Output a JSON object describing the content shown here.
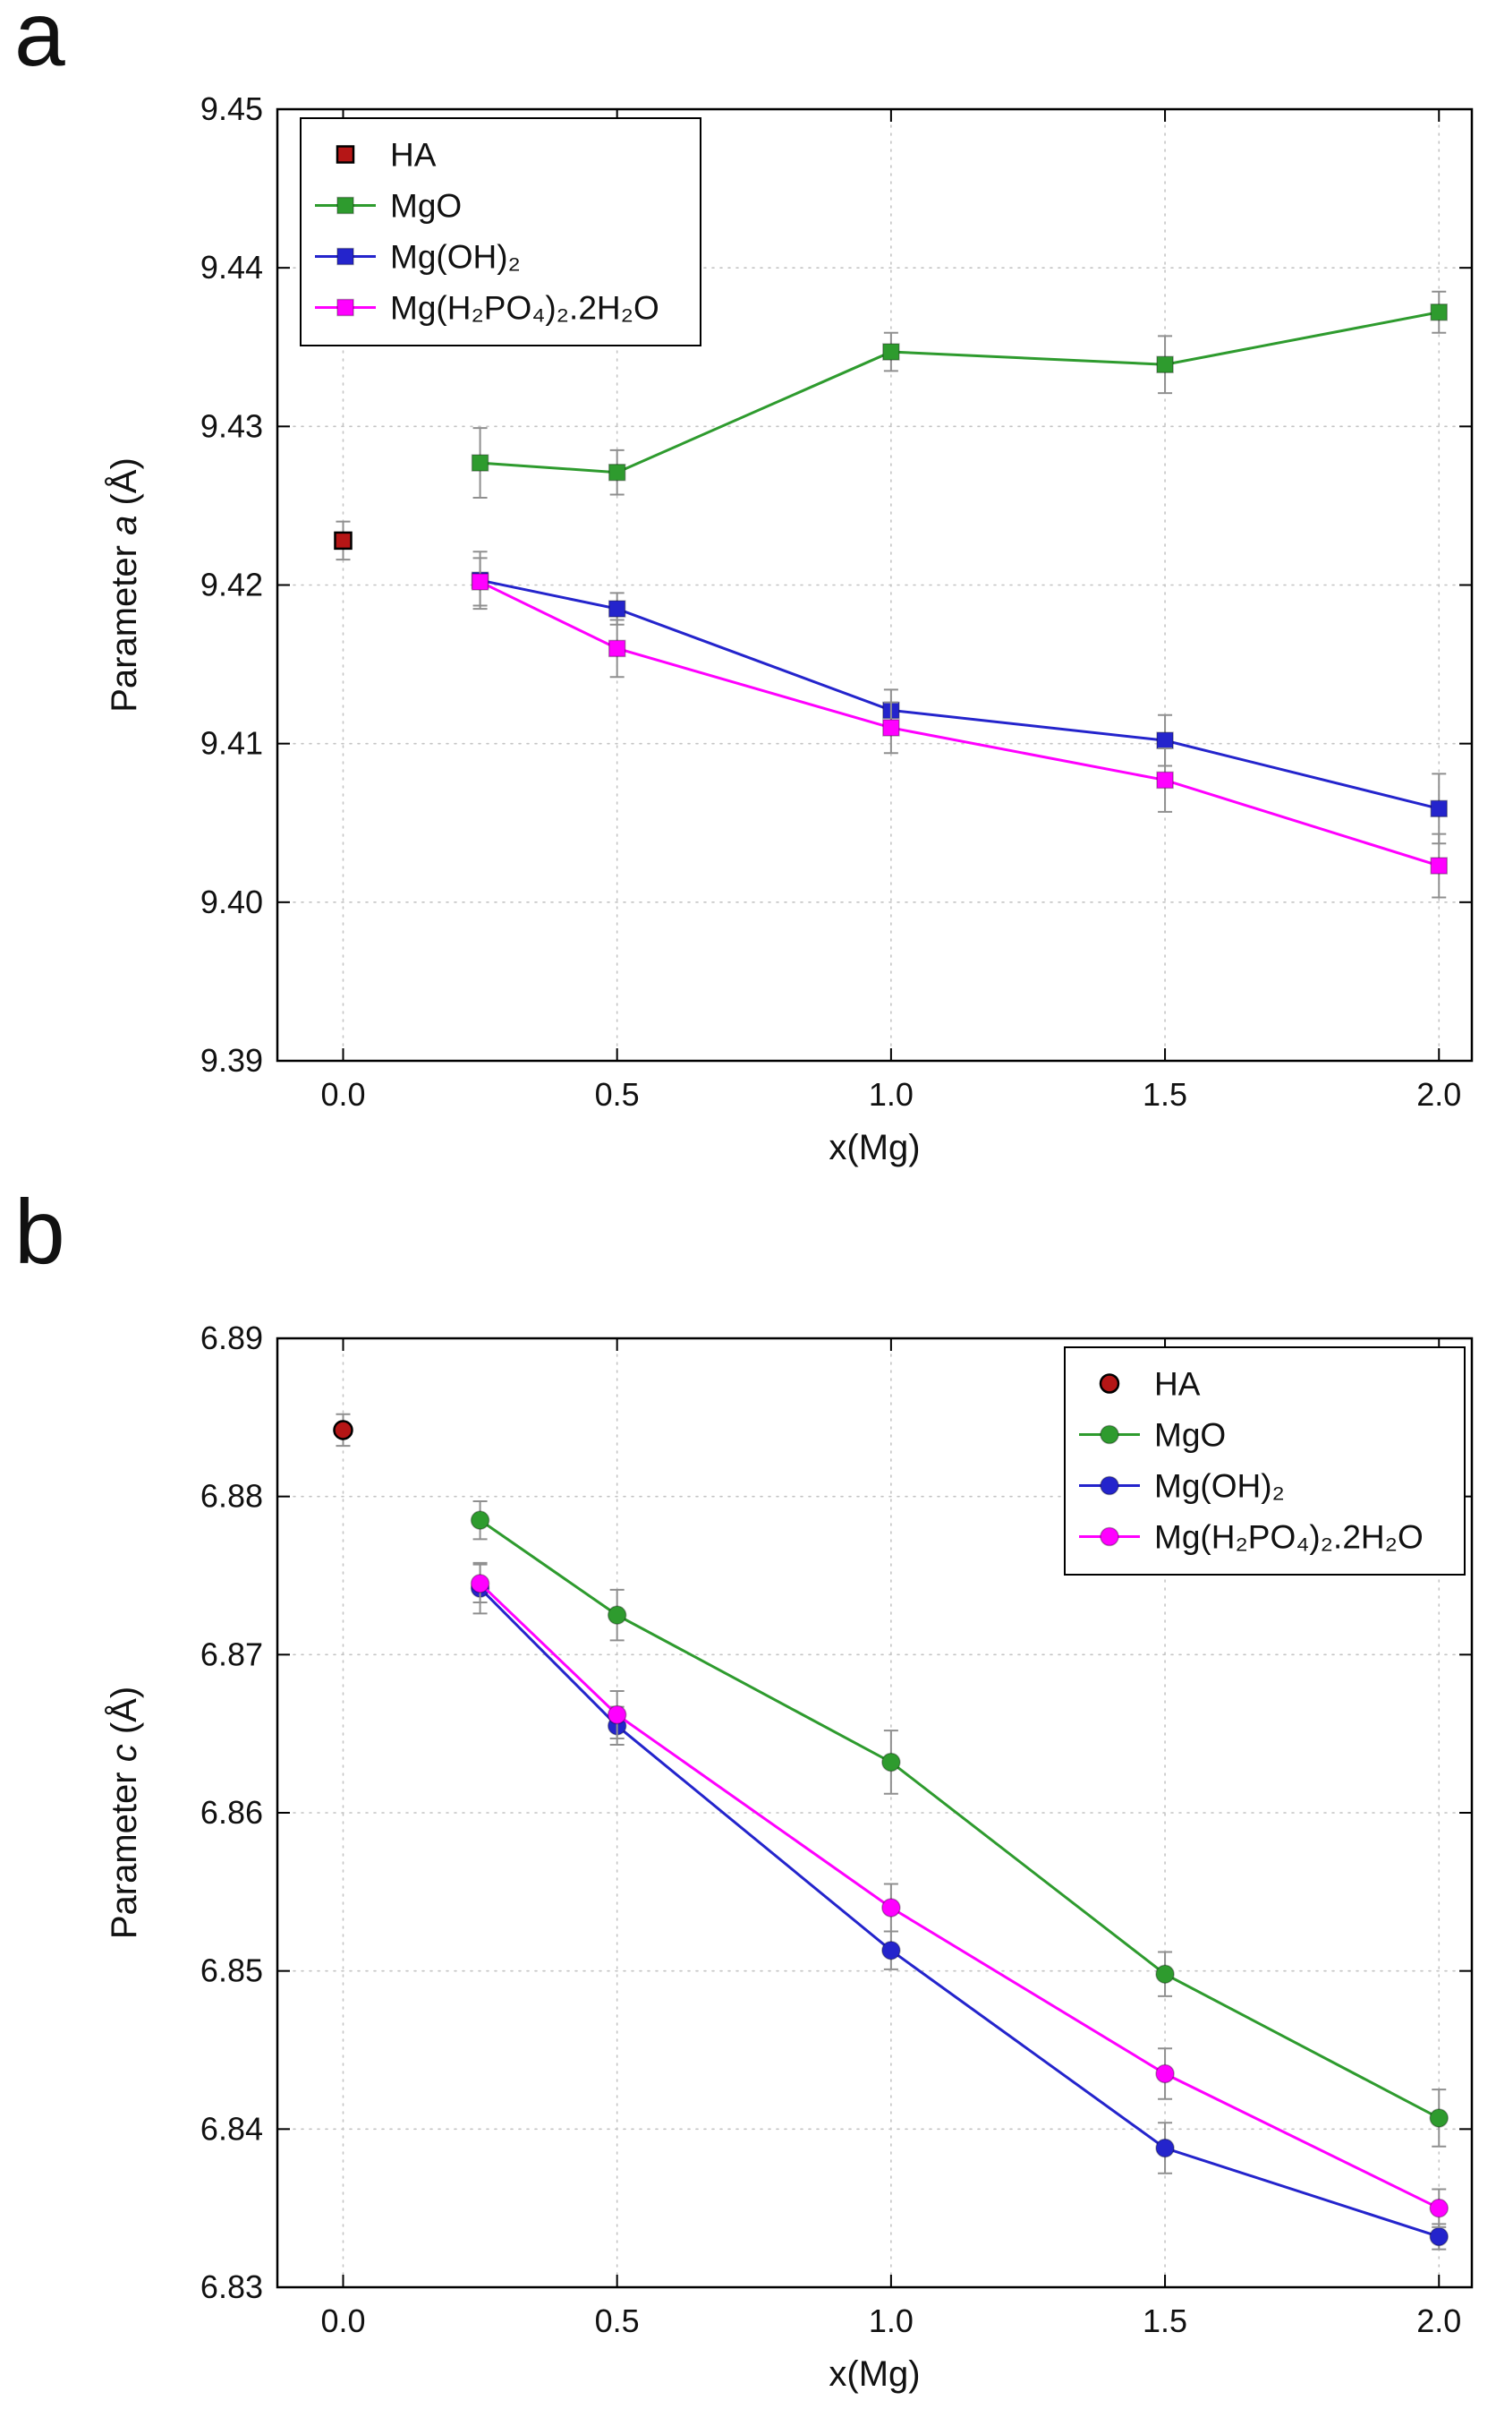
{
  "figure": {
    "panels": [
      {
        "label": "a"
      },
      {
        "label": "b"
      }
    ]
  },
  "chart_data": [
    {
      "type": "line",
      "panel": "a",
      "marker": "square",
      "title": "",
      "xlabel": "x(Mg)",
      "ylabel": "Parameter a (Å)",
      "ylabel_parts": [
        {
          "text": "Parameter ",
          "italic": false
        },
        {
          "text": "a",
          "italic": true
        },
        {
          "text": " (Å)",
          "italic": false
        }
      ],
      "xlim": [
        -0.12,
        2.06
      ],
      "ylim": [
        9.39,
        9.45
      ],
      "grid": true,
      "legend_position": "top-left",
      "xticks": [
        {
          "v": 0.0,
          "label": "0.0"
        },
        {
          "v": 0.5,
          "label": "0.5"
        },
        {
          "v": 1.0,
          "label": "1.0"
        },
        {
          "v": 1.5,
          "label": "1.5"
        },
        {
          "v": 2.0,
          "label": "2.0"
        }
      ],
      "yticks": [
        {
          "v": 9.39,
          "label": "9.39"
        },
        {
          "v": 9.4,
          "label": "9.40"
        },
        {
          "v": 9.41,
          "label": "9.41"
        },
        {
          "v": 9.42,
          "label": "9.42"
        },
        {
          "v": 9.43,
          "label": "9.43"
        },
        {
          "v": 9.44,
          "label": "9.44"
        },
        {
          "v": 9.45,
          "label": "9.45"
        }
      ],
      "error_bar_color": "#8f8f8f",
      "series": [
        {
          "name": "HA",
          "color": "#b51616",
          "edge": "#000000",
          "line": false,
          "x": [
            0.0
          ],
          "y": [
            9.4228
          ],
          "yerr": [
            0.0012
          ]
        },
        {
          "name": "MgO",
          "color": "#2e9b2e",
          "line": true,
          "x": [
            0.25,
            0.5,
            1.0,
            1.5,
            2.0
          ],
          "y": [
            9.4277,
            9.4271,
            9.4347,
            9.4339,
            9.4372
          ],
          "yerr": [
            0.0022,
            0.0014,
            0.0012,
            0.0018,
            0.0013
          ]
        },
        {
          "name": "Mg(OH)₂",
          "color": "#2424cc",
          "line": true,
          "x": [
            0.25,
            0.5,
            1.0,
            1.5,
            2.0
          ],
          "y": [
            9.4203,
            9.4185,
            9.4121,
            9.4102,
            9.4059
          ],
          "yerr": [
            0.0018,
            0.001,
            0.0013,
            0.0016,
            0.0022
          ]
        },
        {
          "name": "Mg(H₂PO₄)₂.2H₂O",
          "color": "#ff00ff",
          "line": true,
          "x": [
            0.25,
            0.5,
            1.0,
            1.5,
            2.0
          ],
          "y": [
            9.4202,
            9.416,
            9.411,
            9.4077,
            9.4023
          ],
          "yerr": [
            0.0015,
            0.0018,
            0.0016,
            0.002,
            0.002
          ]
        }
      ]
    },
    {
      "type": "line",
      "panel": "b",
      "marker": "circle",
      "title": "",
      "xlabel": "x(Mg)",
      "ylabel": "Parameter c (Å)",
      "ylabel_parts": [
        {
          "text": "Parameter ",
          "italic": false
        },
        {
          "text": "c",
          "italic": true
        },
        {
          "text": " (Å)",
          "italic": false
        }
      ],
      "xlim": [
        -0.12,
        2.06
      ],
      "ylim": [
        6.83,
        6.89
      ],
      "grid": true,
      "legend_position": "top-right",
      "xticks": [
        {
          "v": 0.0,
          "label": "0.0"
        },
        {
          "v": 0.5,
          "label": "0.5"
        },
        {
          "v": 1.0,
          "label": "1.0"
        },
        {
          "v": 1.5,
          "label": "1.5"
        },
        {
          "v": 2.0,
          "label": "2.0"
        }
      ],
      "yticks": [
        {
          "v": 6.83,
          "label": "6.83"
        },
        {
          "v": 6.84,
          "label": "6.84"
        },
        {
          "v": 6.85,
          "label": "6.85"
        },
        {
          "v": 6.86,
          "label": "6.86"
        },
        {
          "v": 6.87,
          "label": "6.87"
        },
        {
          "v": 6.88,
          "label": "6.88"
        },
        {
          "v": 6.89,
          "label": "6.89"
        }
      ],
      "error_bar_color": "#8f8f8f",
      "series": [
        {
          "name": "HA",
          "color": "#b51616",
          "edge": "#000000",
          "line": false,
          "x": [
            0.0
          ],
          "y": [
            6.8842
          ],
          "yerr": [
            0.001
          ]
        },
        {
          "name": "MgO",
          "color": "#2e9b2e",
          "line": true,
          "x": [
            0.25,
            0.5,
            1.0,
            1.5,
            2.0
          ],
          "y": [
            6.8785,
            6.8725,
            6.8632,
            6.8498,
            6.8407
          ],
          "yerr": [
            0.0012,
            0.0016,
            0.002,
            0.0014,
            0.0018
          ]
        },
        {
          "name": "Mg(OH)₂",
          "color": "#2424cc",
          "line": true,
          "x": [
            0.25,
            0.5,
            1.0,
            1.5,
            2.0
          ],
          "y": [
            6.8742,
            6.8655,
            6.8513,
            6.8388,
            6.8332
          ],
          "yerr": [
            0.0016,
            0.0012,
            0.0012,
            0.0016,
            0.0008
          ]
        },
        {
          "name": "Mg(H₂PO₄)₂.2H₂O",
          "color": "#ff00ff",
          "line": true,
          "x": [
            0.25,
            0.5,
            1.0,
            1.5,
            2.0
          ],
          "y": [
            6.8745,
            6.8662,
            6.854,
            6.8435,
            6.835
          ],
          "yerr": [
            0.0012,
            0.0015,
            0.0015,
            0.0016,
            0.0012
          ]
        }
      ]
    }
  ]
}
